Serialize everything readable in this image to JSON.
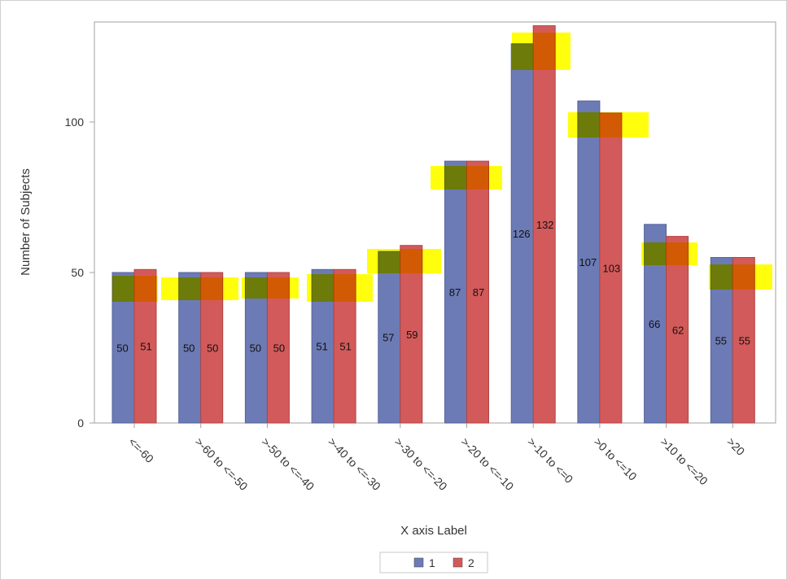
{
  "chart_data": {
    "type": "bar",
    "title": "",
    "xlabel": "X axis Label",
    "ylabel": "Number of Subjects",
    "ylim": [
      0,
      133
    ],
    "yticks": [
      0,
      50,
      100
    ],
    "grid": false,
    "legend_placement": "bottom",
    "categories": [
      "<=-60",
      ">-60 to <=-50",
      ">-50 to <=-40",
      ">-40 to <=-30",
      ">-30 to <=-20",
      ">-20 to <=-10",
      ">-10 to <=0",
      ">0 to <=10",
      ">10 to <=20",
      ">20"
    ],
    "series": [
      {
        "name": "1",
        "color": "#6c7bb5",
        "values": [
          50,
          50,
          50,
          51,
          57,
          87,
          126,
          107,
          66,
          55
        ]
      },
      {
        "name": "2",
        "color": "#d35a5a",
        "values": [
          51,
          50,
          50,
          51,
          59,
          87,
          132,
          103,
          62,
          55
        ]
      }
    ],
    "highlight_color": "#ffff00"
  }
}
